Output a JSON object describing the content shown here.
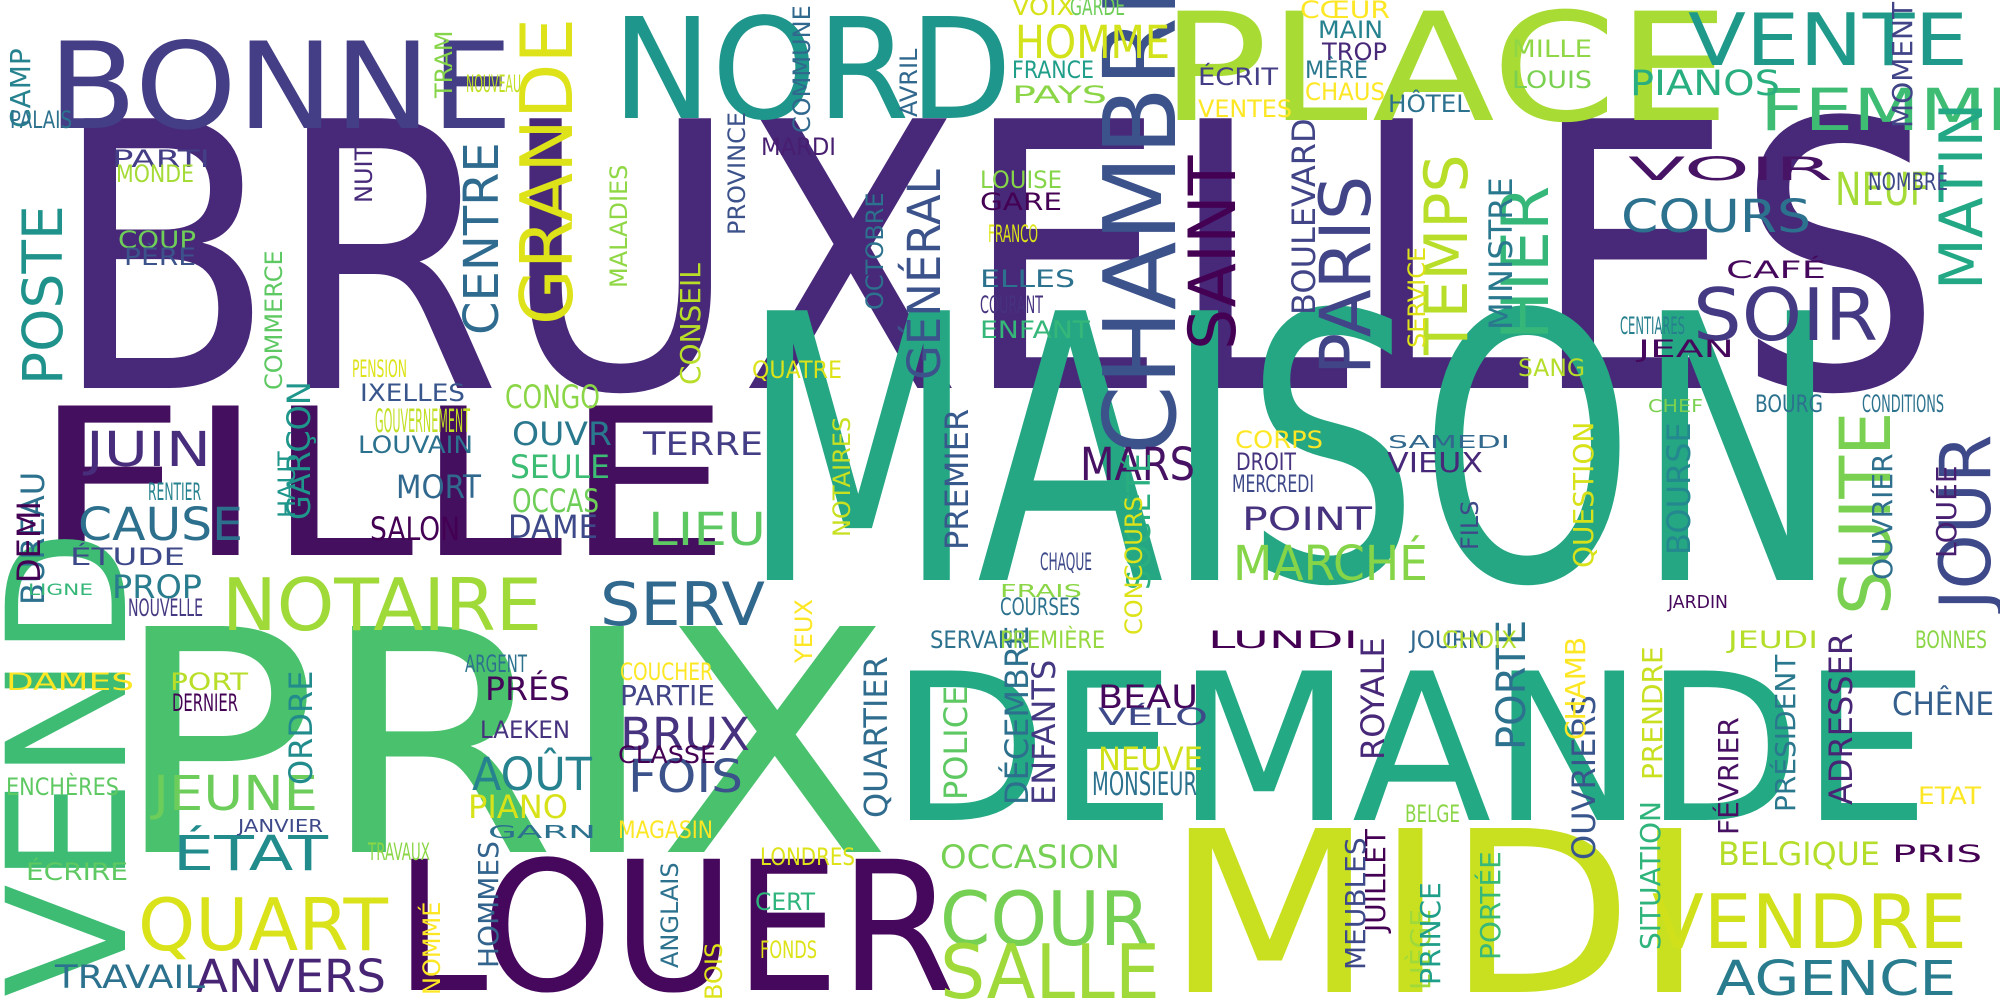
{
  "colors": {
    "background": "#ffffff",
    "palette": [
      "#440154",
      "#482878",
      "#3e4989",
      "#31688e",
      "#26828e",
      "#1f9e89",
      "#35b779",
      "#6ece58",
      "#b5de2b",
      "#fde725"
    ]
  },
  "words": [
    {
      "text": "BRUXELLES",
      "color": "#482878"
    },
    {
      "text": "MAISON",
      "color": "#26a784"
    },
    {
      "text": "PRIX",
      "color": "#4ac16d"
    },
    {
      "text": "DEMANDE",
      "color": "#23a983"
    },
    {
      "text": "FILLE",
      "color": "#440f5e"
    },
    {
      "text": "MIDI",
      "color": "#c8e020"
    },
    {
      "text": "LOUER",
      "color": "#46085c"
    },
    {
      "text": "PLACE",
      "color": "#a8db34"
    },
    {
      "text": "NORD",
      "color": "#1f968b"
    },
    {
      "text": "BONNE",
      "color": "#433e85"
    },
    {
      "text": "VEND",
      "color": "#3ebc74"
    },
    {
      "text": "CHAMBRE",
      "color": "#3b528b"
    },
    {
      "text": "NOTAIRE",
      "color": "#a0da39"
    },
    {
      "text": "GRANDE",
      "color": "#dde318"
    },
    {
      "text": "VENTE",
      "color": "#1f9a8a"
    },
    {
      "text": "PARIS",
      "color": "#414487"
    },
    {
      "text": "SAINT",
      "color": "#440154"
    },
    {
      "text": "TEMPS",
      "color": "#b8de29"
    },
    {
      "text": "HIER",
      "color": "#35b779"
    },
    {
      "text": "JOUR",
      "color": "#3e4989"
    },
    {
      "text": "SOIR",
      "color": "#443a83"
    },
    {
      "text": "QUART",
      "color": "#dae319"
    },
    {
      "text": "COUR",
      "color": "#75d054"
    },
    {
      "text": "SALLE",
      "color": "#9fda3a"
    },
    {
      "text": "VENDRE",
      "color": "#d0e11c"
    },
    {
      "text": "SUITE",
      "color": "#7ad151"
    },
    {
      "text": "FEMME",
      "color": "#3fbc73"
    },
    {
      "text": "MATIN",
      "color": "#22a884"
    },
    {
      "text": "SERV",
      "color": "#31688e"
    },
    {
      "text": "POSTE",
      "color": "#20928c"
    },
    {
      "text": "AGENCE",
      "color": "#287c8e"
    },
    {
      "text": "MARCHÉ",
      "color": "#86d549"
    },
    {
      "text": "JEUNE",
      "color": "#6ccd5a"
    },
    {
      "text": "ÉTAT",
      "color": "#228c8d"
    },
    {
      "text": "CENTRE",
      "color": "#2f6b8e"
    },
    {
      "text": "JUIN",
      "color": "#472d7b"
    },
    {
      "text": "CAUSE",
      "color": "#2d708e"
    },
    {
      "text": "ANVERS",
      "color": "#482475"
    },
    {
      "text": "GÉNÉRAL",
      "color": "#3b528b"
    },
    {
      "text": "BRUX",
      "color": "#46327e"
    },
    {
      "text": "LIEU",
      "color": "#5ec962"
    },
    {
      "text": "COURS",
      "color": "#2c728e"
    },
    {
      "text": "NEUF",
      "color": "#a5db36"
    },
    {
      "text": "MARS",
      "color": "#471164"
    },
    {
      "text": "FOIS",
      "color": "#3b528b"
    },
    {
      "text": "AOÛT",
      "color": "#26828e"
    },
    {
      "text": "HOMME",
      "color": "#d2e21b"
    },
    {
      "text": "PIANOS",
      "color": "#29af7f"
    },
    {
      "text": "BOULEVARD",
      "color": "#414487"
    },
    {
      "text": "MINISTRE",
      "color": "#2a788e"
    },
    {
      "text": "PORTE",
      "color": "#2c728e"
    },
    {
      "text": "MORT",
      "color": "#31688e"
    },
    {
      "text": "SALON",
      "color": "#440154"
    },
    {
      "text": "PRÉS",
      "color": "#450559"
    },
    {
      "text": "BEAU",
      "color": "#46085c"
    },
    {
      "text": "OCCASION",
      "color": "#75d054"
    },
    {
      "text": "TRAVAIL",
      "color": "#2c728e"
    },
    {
      "text": "BELGIQUE",
      "color": "#b5de2b"
    },
    {
      "text": "CHÊNE",
      "color": "#355f8d"
    },
    {
      "text": "ROYALE",
      "color": "#482878"
    },
    {
      "text": "POLICE",
      "color": "#5ec962"
    },
    {
      "text": "ENFANTS",
      "color": "#453882"
    },
    {
      "text": "QUARTIER",
      "color": "#2f6c8e"
    },
    {
      "text": "OUVRIERS",
      "color": "#39568c"
    },
    {
      "text": "ADRESSER",
      "color": "#482475"
    },
    {
      "text": "BOURSE",
      "color": "#23898e"
    },
    {
      "text": "PREMIER",
      "color": "#38598c"
    },
    {
      "text": "SOCIÉTÉ",
      "color": "#29af7f"
    },
    {
      "text": "CONSEIL",
      "color": "#b8de29"
    },
    {
      "text": "COMMERCE",
      "color": "#5ec962"
    },
    {
      "text": "GOUVERNEMENT",
      "color": "#c2df23"
    },
    {
      "text": "OUVR",
      "color": "#2a788e"
    },
    {
      "text": "SEULE",
      "color": "#3dbc74"
    },
    {
      "text": "OCCAS",
      "color": "#6ece58"
    },
    {
      "text": "DAME",
      "color": "#3e4989"
    },
    {
      "text": "CONGO",
      "color": "#8bd646"
    },
    {
      "text": "TERRE",
      "color": "#433e85"
    },
    {
      "text": "BUREAU",
      "color": "#2c728e"
    },
    {
      "text": "DÉCEMBRE",
      "color": "#2d708e"
    },
    {
      "text": "DEMI",
      "color": "#440154"
    },
    {
      "text": "PROP",
      "color": "#287c8e"
    },
    {
      "text": "GARÇON",
      "color": "#1f968b"
    },
    {
      "text": "ORDRE",
      "color": "#228c8d"
    },
    {
      "text": "PIANO",
      "color": "#d8e219"
    },
    {
      "text": "PARTIE",
      "color": "#414487"
    },
    {
      "text": "POINT",
      "color": "#46327e"
    },
    {
      "text": "NEUVE",
      "color": "#d0e11c"
    },
    {
      "text": "MONSIEUR",
      "color": "#2c728e"
    },
    {
      "text": "SERVICE",
      "color": "#dde318"
    },
    {
      "text": "VOIR",
      "color": "#471365"
    },
    {
      "text": "HOMMES",
      "color": "#32648e"
    },
    {
      "text": "LIÈGE",
      "color": "#9fda3a"
    },
    {
      "text": "JUILLET",
      "color": "#440154"
    },
    {
      "text": "MEUBLES",
      "color": "#3e4989"
    },
    {
      "text": "PRINCE",
      "color": "#1f9e89"
    },
    {
      "text": "PORTÉE",
      "color": "#38b977"
    },
    {
      "text": "SITUATION",
      "color": "#2fb47c"
    },
    {
      "text": "FÉVRIER",
      "color": "#471063"
    },
    {
      "text": "PRÉSIDENT",
      "color": "#2a788e"
    },
    {
      "text": "QUESTION",
      "color": "#d8e219"
    },
    {
      "text": "PRENDRE",
      "color": "#c8e020"
    },
    {
      "text": "CHAMB",
      "color": "#fde725"
    },
    {
      "text": "VIEUX",
      "color": "#482878"
    },
    {
      "text": "LOUÉE",
      "color": "#481f70"
    },
    {
      "text": "OUVRIER",
      "color": "#2e6f8e"
    },
    {
      "text": "MOMENT",
      "color": "#414487"
    },
    {
      "text": "CAMP",
      "color": "#26828e"
    },
    {
      "text": "PALAIS",
      "color": "#2c728e"
    },
    {
      "text": "PARTI",
      "color": "#433e85"
    },
    {
      "text": "MONDE",
      "color": "#a5db36"
    },
    {
      "text": "COUP",
      "color": "#6ece58"
    },
    {
      "text": "PÈRE",
      "color": "#3b528b"
    },
    {
      "text": "NUIT",
      "color": "#472a7a"
    },
    {
      "text": "PENSION",
      "color": "#dde318"
    },
    {
      "text": "IXELLES",
      "color": "#39568c"
    },
    {
      "text": "LOUVAIN",
      "color": "#2c728e"
    },
    {
      "text": "HAUT",
      "color": "#1f968b"
    },
    {
      "text": "RENTIER",
      "color": "#26828e"
    },
    {
      "text": "ÉTUDE",
      "color": "#3e4989"
    },
    {
      "text": "LIGNE",
      "color": "#35b779"
    },
    {
      "text": "NOUVELLE",
      "color": "#443983"
    },
    {
      "text": "DAMES",
      "color": "#fde725"
    },
    {
      "text": "PORT",
      "color": "#b8de29"
    },
    {
      "text": "DERNIER",
      "color": "#440154"
    },
    {
      "text": "ENCHÈRES",
      "color": "#5ec962"
    },
    {
      "text": "JANVIER",
      "color": "#3e4989"
    },
    {
      "text": "ÉCRIRE",
      "color": "#5ec962"
    },
    {
      "text": "TRAM",
      "color": "#86d549"
    },
    {
      "text": "NOUVEAU",
      "color": "#c2df23"
    },
    {
      "text": "MALADIES",
      "color": "#8fd744"
    },
    {
      "text": "PROVINCE",
      "color": "#3b528b"
    },
    {
      "text": "OCTOBRE",
      "color": "#2c728e"
    },
    {
      "text": "COMMUNE",
      "color": "#31688e"
    },
    {
      "text": "AVRIL",
      "color": "#31688e"
    },
    {
      "text": "MARDI",
      "color": "#481f70"
    },
    {
      "text": "VOIX",
      "color": "#d8e219"
    },
    {
      "text": "GARDE",
      "color": "#6ece58"
    },
    {
      "text": "FRANCE",
      "color": "#1f9e89"
    },
    {
      "text": "PAYS",
      "color": "#8bd646"
    },
    {
      "text": "LOUISE",
      "color": "#86d549"
    },
    {
      "text": "GARE",
      "color": "#440154"
    },
    {
      "text": "FRANCO",
      "color": "#dde318"
    },
    {
      "text": "ELLES",
      "color": "#2c728e"
    },
    {
      "text": "COURANT",
      "color": "#46327e"
    },
    {
      "text": "ENFANT",
      "color": "#35b779"
    },
    {
      "text": "QUATRE",
      "color": "#dde318"
    },
    {
      "text": "CŒUR",
      "color": "#fde725"
    },
    {
      "text": "MAIN",
      "color": "#26828e"
    },
    {
      "text": "TROP",
      "color": "#482878"
    },
    {
      "text": "MÈRE",
      "color": "#2a788e"
    },
    {
      "text": "CHAUS",
      "color": "#fde725"
    },
    {
      "text": "ÉCRIT",
      "color": "#433e85"
    },
    {
      "text": "VENTES",
      "color": "#fde725"
    },
    {
      "text": "HÔTEL",
      "color": "#2c728e"
    },
    {
      "text": "MILLE",
      "color": "#8fd744"
    },
    {
      "text": "LOUIS",
      "color": "#7ad151"
    },
    {
      "text": "NOMBRE",
      "color": "#3e4989"
    },
    {
      "text": "CAFÉ",
      "color": "#46085c"
    },
    {
      "text": "CENTIARES",
      "color": "#277f8e"
    },
    {
      "text": "JEAN",
      "color": "#46085c"
    },
    {
      "text": "SANG",
      "color": "#b5de2b"
    },
    {
      "text": "CHEF",
      "color": "#7ad151"
    },
    {
      "text": "BOURG",
      "color": "#2c728e"
    },
    {
      "text": "CONDITIONS",
      "color": "#2c728e"
    },
    {
      "text": "SAMEDI",
      "color": "#31688e"
    },
    {
      "text": "CORPS",
      "color": "#fde725"
    },
    {
      "text": "DROIT",
      "color": "#46327e"
    },
    {
      "text": "MERCREDI",
      "color": "#3e4989"
    },
    {
      "text": "FILS",
      "color": "#3e4989"
    },
    {
      "text": "CHAQUE",
      "color": "#3e4989"
    },
    {
      "text": "FRAIS",
      "color": "#8bd646"
    },
    {
      "text": "COURSES",
      "color": "#2c728e"
    },
    {
      "text": "SERVANTE",
      "color": "#2c728e"
    },
    {
      "text": "PREMIÈRE",
      "color": "#95d840"
    },
    {
      "text": "LUNDI",
      "color": "#440154"
    },
    {
      "text": "JOURN",
      "color": "#31688e"
    },
    {
      "text": "CHOIX",
      "color": "#b5de2b"
    },
    {
      "text": "JARDIN",
      "color": "#46085c"
    },
    {
      "text": "JEUDI",
      "color": "#b5de2b"
    },
    {
      "text": "BONNES",
      "color": "#8bd646"
    },
    {
      "text": "CONCOURS",
      "color": "#dde318"
    },
    {
      "text": "NOTAIRES",
      "color": "#c8e020"
    },
    {
      "text": "YEUX",
      "color": "#fde725"
    },
    {
      "text": "ARGENT",
      "color": "#2c728e"
    },
    {
      "text": "LAEKEN",
      "color": "#46327e"
    },
    {
      "text": "COUCHER",
      "color": "#fde725"
    },
    {
      "text": "CLASSE",
      "color": "#440154"
    },
    {
      "text": "MAGASIN",
      "color": "#fde725"
    },
    {
      "text": "GARN",
      "color": "#2c728e"
    },
    {
      "text": "TRAVAUX",
      "color": "#8bd646"
    },
    {
      "text": "NOMMÉ",
      "color": "#fde725"
    },
    {
      "text": "ANGLAIS",
      "color": "#2c728e"
    },
    {
      "text": "BOIS",
      "color": "#dde318"
    },
    {
      "text": "CERT",
      "color": "#2fb47c"
    },
    {
      "text": "FONDS",
      "color": "#dde318"
    },
    {
      "text": "LONDRES",
      "color": "#dde318"
    },
    {
      "text": "VÉLO",
      "color": "#3e4989"
    },
    {
      "text": "BELGE",
      "color": "#8bd646"
    },
    {
      "text": "PRIS",
      "color": "#440154"
    },
    {
      "text": "ETAT",
      "color": "#fde725"
    }
  ]
}
